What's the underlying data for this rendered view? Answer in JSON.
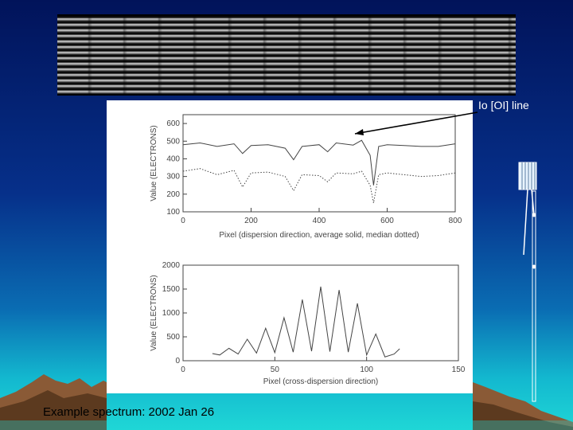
{
  "annotation": {
    "label": "Io [OI] line"
  },
  "caption": "Example spectrum: 2002 Jan 26",
  "colors": {
    "background_top": "#01135a",
    "background_bottom": "#1fd6d6",
    "plot_ink": "#444444"
  },
  "chart_data": [
    {
      "type": "line",
      "xlabel": "Pixel (dispersion direction, average solid, median dotted)",
      "ylabel": "Value (ELECTRONS)",
      "xlim": [
        0,
        800
      ],
      "ylim": [
        100,
        650
      ],
      "xticks": [
        0,
        200,
        400,
        600,
        800
      ],
      "yticks": [
        100,
        200,
        300,
        400,
        500,
        600
      ],
      "series": [
        {
          "style": "solid",
          "x": [
            0,
            50,
            100,
            150,
            175,
            200,
            250,
            300,
            325,
            350,
            400,
            425,
            450,
            500,
            525,
            550,
            560,
            575,
            600,
            650,
            700,
            750,
            800
          ],
          "y": [
            480,
            490,
            470,
            485,
            430,
            475,
            480,
            460,
            395,
            470,
            480,
            440,
            490,
            478,
            505,
            420,
            250,
            470,
            480,
            475,
            470,
            470,
            485
          ]
        },
        {
          "style": "dotted",
          "x": [
            0,
            50,
            100,
            150,
            175,
            200,
            250,
            300,
            325,
            350,
            400,
            425,
            450,
            500,
            525,
            550,
            560,
            575,
            600,
            650,
            700,
            750,
            800
          ],
          "y": [
            330,
            345,
            310,
            335,
            240,
            320,
            325,
            300,
            220,
            310,
            305,
            270,
            320,
            315,
            330,
            250,
            150,
            310,
            320,
            310,
            300,
            305,
            320
          ]
        }
      ]
    },
    {
      "type": "line",
      "xlabel": "Pixel (cross-dispersion direction)",
      "ylabel": "Value (ELECTRONS)",
      "xlim": [
        0,
        150
      ],
      "ylim": [
        0,
        2000
      ],
      "xticks": [
        0,
        50,
        100,
        150
      ],
      "yticks": [
        0,
        500,
        1000,
        1500,
        2000
      ],
      "series": [
        {
          "style": "solid",
          "x": [
            16,
            20,
            25,
            30,
            35,
            40,
            45,
            50,
            55,
            60,
            65,
            70,
            75,
            80,
            85,
            90,
            95,
            100,
            105,
            110,
            115,
            118
          ],
          "y": [
            150,
            120,
            260,
            140,
            450,
            160,
            680,
            170,
            900,
            180,
            1280,
            200,
            1550,
            190,
            1480,
            180,
            1200,
            120,
            560,
            80,
            140,
            250
          ]
        }
      ]
    }
  ]
}
